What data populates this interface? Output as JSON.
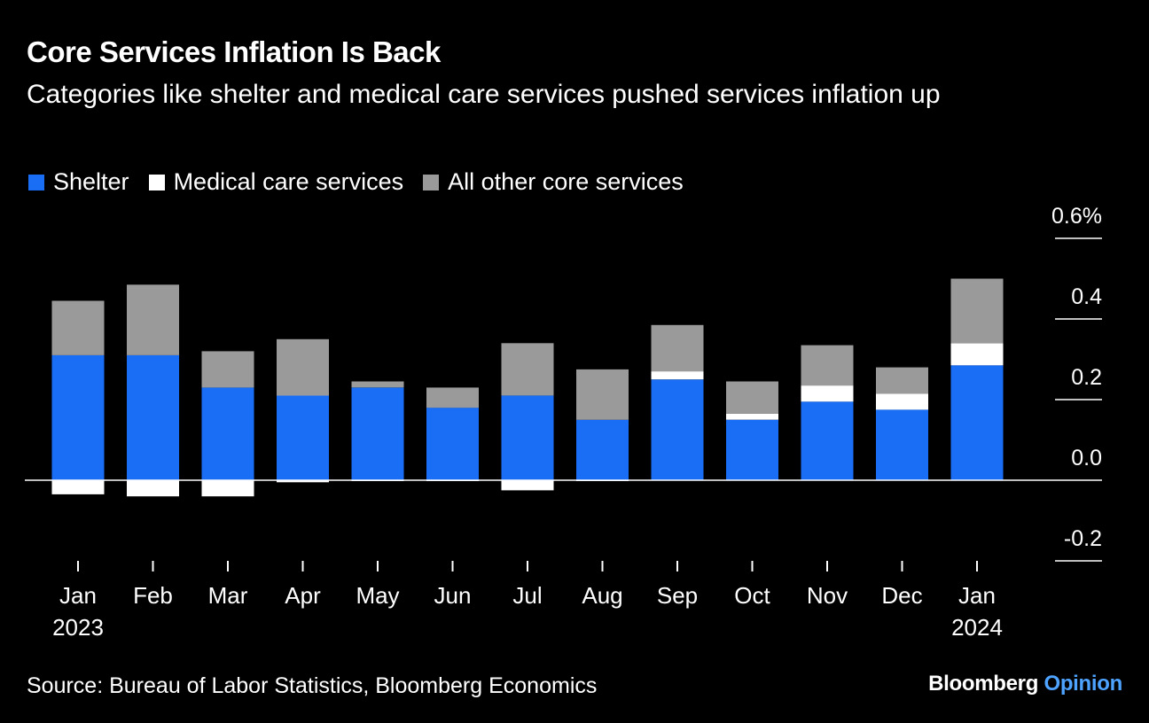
{
  "header": {
    "title": "Core Services Inflation Is Back",
    "subtitle": "Categories like shelter and medical care services pushed services inflation up"
  },
  "legend": {
    "items": [
      {
        "label": "Shelter",
        "color": "#1a6ef5"
      },
      {
        "label": "Medical care services",
        "color": "#ffffff"
      },
      {
        "label": "All other core services",
        "color": "#9a9a9a"
      }
    ]
  },
  "footer": {
    "source": "Source: Bureau of Labor Statistics, Bloomberg Economics",
    "brand_main": "Bloomberg",
    "brand_accent": "Opinion"
  },
  "chart_data": {
    "type": "bar",
    "stacked": true,
    "categories": [
      "Jan",
      "Feb",
      "Mar",
      "Apr",
      "May",
      "Jun",
      "Jul",
      "Aug",
      "Sep",
      "Oct",
      "Nov",
      "Dec",
      "Jan"
    ],
    "year_labels": [
      "2023",
      "",
      "",
      "",
      "",
      "",
      "",
      "",
      "",
      "",
      "",
      "",
      "2024"
    ],
    "series": [
      {
        "name": "Shelter",
        "color": "#1a6ef5",
        "values": [
          0.31,
          0.31,
          0.23,
          0.21,
          0.23,
          0.18,
          0.21,
          0.15,
          0.25,
          0.15,
          0.195,
          0.175,
          0.285
        ]
      },
      {
        "name": "Medical care services",
        "color": "#ffffff",
        "values": [
          -0.035,
          -0.04,
          -0.04,
          -0.005,
          -0.002,
          -0.002,
          -0.025,
          -0.002,
          0.02,
          0.015,
          0.04,
          0.04,
          0.055
        ]
      },
      {
        "name": "All other core services",
        "color": "#9a9a9a",
        "values": [
          0.135,
          0.175,
          0.09,
          0.14,
          0.015,
          0.05,
          0.13,
          0.125,
          0.115,
          0.08,
          0.1,
          0.065,
          0.16
        ]
      }
    ],
    "y_ticks": [
      "0.6%",
      "0.4",
      "0.2",
      "0.0",
      "-0.2"
    ],
    "y_tick_values": [
      0.6,
      0.4,
      0.2,
      0.0,
      -0.2
    ],
    "ylim": [
      -0.2,
      0.6
    ],
    "y_axis_position": "right",
    "grid": false,
    "legend_position": "top-left"
  }
}
